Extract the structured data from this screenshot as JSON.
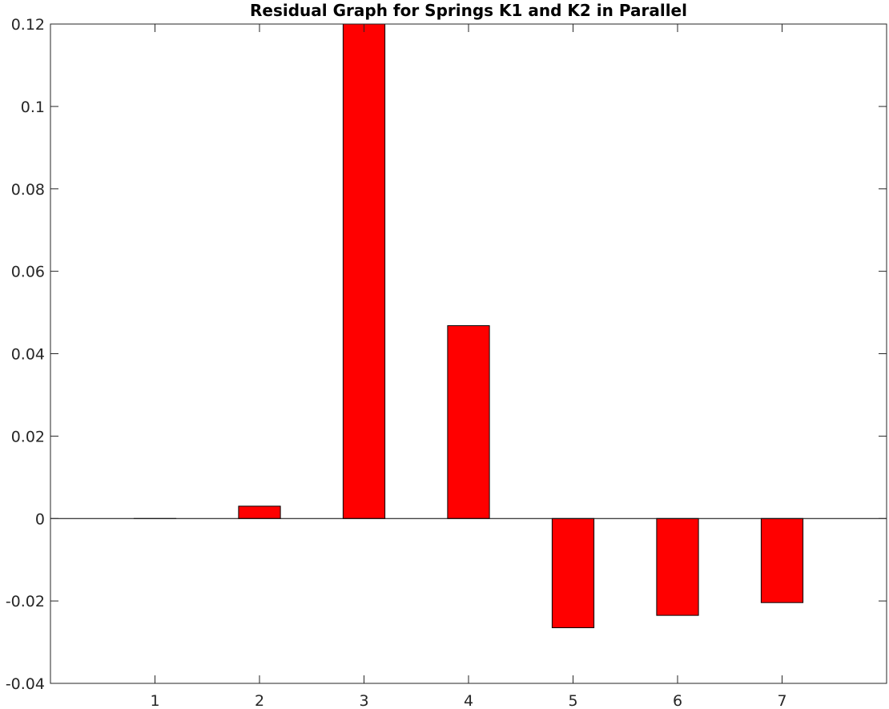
{
  "chart_data": {
    "type": "bar",
    "title": "Residual Graph for Springs K1 and K2 in Parallel",
    "xlabel": "",
    "ylabel": "",
    "categories": [
      "1",
      "2",
      "3",
      "4",
      "5",
      "6",
      "7"
    ],
    "values": [
      0,
      0.003,
      0.12,
      0.0468,
      -0.0265,
      -0.0235,
      -0.0204
    ],
    "ylim": [
      -0.04,
      0.12
    ],
    "xlim": [
      0,
      8
    ],
    "yticks": [
      -0.04,
      -0.02,
      0,
      0.02,
      0.04,
      0.06,
      0.08,
      0.1,
      0.12
    ],
    "ytick_labels": [
      "-0.04",
      "-0.02",
      "0",
      "0.02",
      "0.04",
      "0.06",
      "0.08",
      "0.1",
      "0.12"
    ],
    "bar_color": "#ff0000",
    "bar_edge_color": "#000000",
    "grid": false,
    "legend": "none"
  }
}
